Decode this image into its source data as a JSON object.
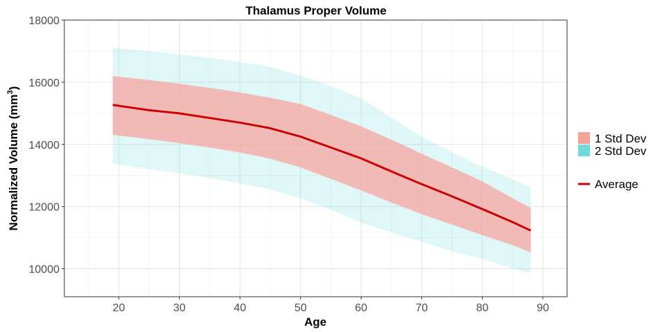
{
  "chart_data": {
    "type": "line",
    "title": "Thalamus Proper Volume",
    "xlabel": "Age",
    "ylabel_main": "Normalized Volume  (mm",
    "ylabel_sup": "3",
    "ylabel_close": ")",
    "xlim": [
      11,
      94
    ],
    "ylim": [
      9100,
      18000
    ],
    "x_ticks": [
      20,
      30,
      40,
      50,
      60,
      70,
      80,
      90
    ],
    "y_ticks": [
      10000,
      12000,
      14000,
      16000,
      18000
    ],
    "grid": true,
    "legend_position": "right",
    "x": [
      19,
      25,
      30,
      35,
      40,
      45,
      50,
      55,
      60,
      65,
      70,
      75,
      80,
      85,
      88
    ],
    "series": [
      {
        "name": "Average",
        "color": "#cc0000",
        "values": [
          15270,
          15100,
          15000,
          14850,
          14700,
          14520,
          14250,
          13900,
          13550,
          13130,
          12720,
          12330,
          11920,
          11500,
          11230
        ]
      }
    ],
    "bands": [
      {
        "name": "2 Std Dev",
        "color": "#6fdadb",
        "lower": [
          13380,
          13210,
          13070,
          12920,
          12740,
          12560,
          12260,
          11900,
          11480,
          11160,
          10880,
          10560,
          10320,
          10010,
          9850
        ],
        "upper": [
          17120,
          17000,
          16900,
          16780,
          16650,
          16490,
          16210,
          15880,
          15480,
          14860,
          14250,
          13750,
          13280,
          12880,
          12620
        ]
      },
      {
        "name": "1 Std Dev",
        "color": "#f8a29c",
        "lower": [
          14310,
          14170,
          14040,
          13900,
          13740,
          13540,
          13260,
          12890,
          12520,
          12130,
          11760,
          11420,
          11080,
          10760,
          10530
        ],
        "upper": [
          16200,
          16070,
          15950,
          15820,
          15670,
          15500,
          15300,
          14950,
          14580,
          14150,
          13700,
          13260,
          12810,
          12270,
          11950
        ]
      }
    ],
    "legend": {
      "band_items": [
        "1 Std Dev",
        "2 Std Dev"
      ],
      "line_item": "Average"
    }
  }
}
